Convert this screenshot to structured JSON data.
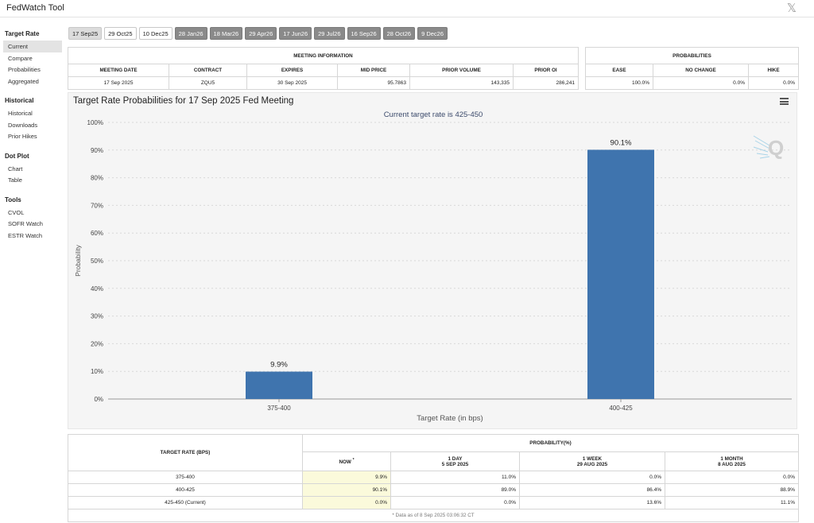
{
  "app": {
    "title": "FedWatch Tool",
    "close_glyph": "𝕏"
  },
  "sidebar": {
    "groups": [
      {
        "heading": "Target Rate",
        "items": [
          "Current",
          "Compare",
          "Probabilities",
          "Aggregated"
        ]
      },
      {
        "heading": "Historical",
        "items": [
          "Historical",
          "Downloads",
          "Prior Hikes"
        ]
      },
      {
        "heading": "Dot Plot",
        "items": [
          "Chart",
          "Table"
        ]
      },
      {
        "heading": "Tools",
        "items": [
          "CVOL",
          "SOFR Watch",
          "ESTR Watch"
        ]
      }
    ],
    "active_item": "Current"
  },
  "tabs": [
    "17 Sep25",
    "29 Oct25",
    "10 Dec25",
    "28 Jan26",
    "18 Mar26",
    "29 Apr26",
    "17 Jun26",
    "29 Jul26",
    "16 Sep26",
    "28 Oct26",
    "9 Dec26"
  ],
  "meeting_info": {
    "group_header": "MEETING INFORMATION",
    "headers": [
      "MEETING DATE",
      "CONTRACT",
      "EXPIRES",
      "MID PRICE",
      "PRIOR VOLUME",
      "PRIOR OI"
    ],
    "row": [
      "17 Sep 2025",
      "ZQU5",
      "30 Sep 2025",
      "95.7863",
      "143,335",
      "286,241"
    ]
  },
  "probabilities": {
    "group_header": "PROBABILITIES",
    "headers": [
      "EASE",
      "NO CHANGE",
      "HIKE"
    ],
    "row": [
      "100.0%",
      "0.0%",
      "0.0%"
    ]
  },
  "chart": {
    "title": "Target Rate Probabilities for 17 Sep 2025 Fed Meeting",
    "subtitle": "Current target rate is 425-450",
    "menu_icon": "hamburger-menu-icon",
    "watermark": "Q",
    "bar_color": "#3f74ae"
  },
  "chart_data": {
    "type": "bar",
    "categories": [
      "375-400",
      "400-425"
    ],
    "values": [
      9.9,
      90.1
    ],
    "data_labels": [
      "9.9%",
      "90.1%"
    ],
    "xlabel": "Target Rate (in bps)",
    "ylabel": "Probability",
    "ylim": [
      0,
      100
    ],
    "yticks": [
      "0%",
      "10%",
      "20%",
      "30%",
      "40%",
      "50%",
      "60%",
      "70%",
      "80%",
      "90%",
      "100%"
    ],
    "grid": true,
    "legend": "none"
  },
  "prob_table": {
    "target_header": "TARGET RATE (BPS)",
    "prob_header": "PROBABILITY(%)",
    "columns": [
      {
        "line1": "NOW",
        "marker": "*",
        "line2": ""
      },
      {
        "line1": "1 DAY",
        "line2": "5 SEP 2025"
      },
      {
        "line1": "1 WEEK",
        "line2": "29 AUG 2025"
      },
      {
        "line1": "1 MONTH",
        "line2": "8 AUG 2025"
      }
    ],
    "rows": [
      {
        "rate": "375-400",
        "values": [
          "9.9%",
          "11.0%",
          "0.0%",
          "0.0%"
        ]
      },
      {
        "rate": "400-425",
        "values": [
          "90.1%",
          "89.0%",
          "86.4%",
          "88.9%"
        ]
      },
      {
        "rate": "425-450 (Current)",
        "values": [
          "0.0%",
          "0.0%",
          "13.6%",
          "11.1%"
        ]
      }
    ],
    "note": "* Data as of 8 Sep 2025 03:06:32 CT"
  }
}
